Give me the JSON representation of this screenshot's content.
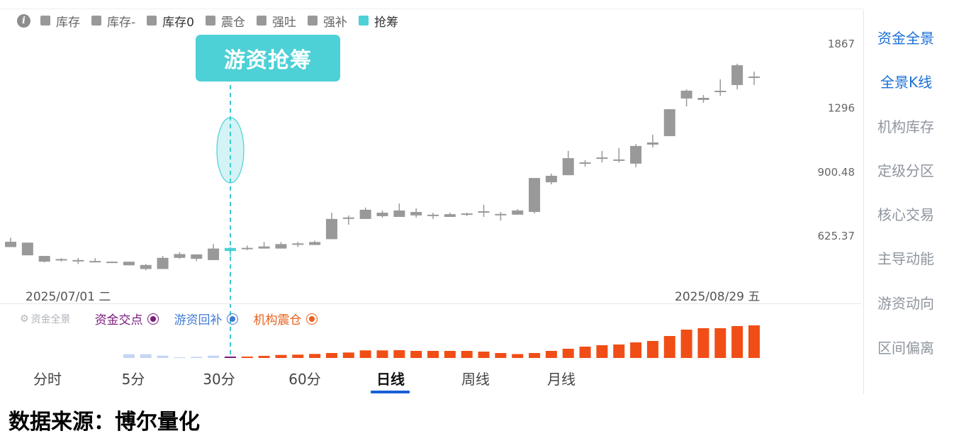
{
  "legend": {
    "info_icon": "info-icon",
    "items": [
      {
        "label": "库存",
        "color": "#999999"
      },
      {
        "label": "库存-",
        "color": "#999999"
      },
      {
        "label": "库存0",
        "color": "#999999"
      },
      {
        "label": "震仓",
        "color": "#999999"
      },
      {
        "label": "强吐",
        "color": "#999999"
      },
      {
        "label": "强补",
        "color": "#999999"
      },
      {
        "label": "抢筹",
        "color": "#4dd0d6"
      }
    ]
  },
  "annotation": {
    "label": "游资抢筹",
    "color": "#4dd0d6"
  },
  "x_axis": {
    "start_label": "2025/07/01 二",
    "end_label": "2025/08/29 五"
  },
  "sidebar": {
    "items": [
      {
        "label": "资金全景",
        "active": true
      },
      {
        "label": "全景K线",
        "active": true
      },
      {
        "label": "机构库存",
        "active": false
      },
      {
        "label": "定级分区",
        "active": false
      },
      {
        "label": "核心交易",
        "active": false
      },
      {
        "label": "主导动能",
        "active": false
      },
      {
        "label": "游资动向",
        "active": false
      },
      {
        "label": "区间偏离",
        "active": false
      }
    ]
  },
  "bottom_legend": {
    "title": "资金全景",
    "items": [
      {
        "label": "资金交点",
        "color": "#7b1a7e"
      },
      {
        "label": "游资回补",
        "color": "#3f7bd6"
      },
      {
        "label": "机构震仓",
        "color": "#e8601c"
      }
    ]
  },
  "tabs": [
    {
      "label": "分时",
      "active": false
    },
    {
      "label": "5分",
      "active": false
    },
    {
      "label": "30分",
      "active": false
    },
    {
      "label": "60分",
      "active": false
    },
    {
      "label": "日线",
      "active": true
    },
    {
      "label": "周线",
      "active": false
    },
    {
      "label": "月线",
      "active": false
    }
  ],
  "footer": "数据来源：博尔量化",
  "chart_data": [
    {
      "type": "candlestick",
      "y_scale": "log",
      "y_ticks": [
        "1867",
        "1296",
        "900.48",
        "625.37"
      ],
      "grid": false,
      "highlight_index": 13,
      "colors": {
        "default": "#999999",
        "highlight": "#4dd0d6"
      },
      "candles": [
        {
          "o": 588,
          "c": 606,
          "h": 620,
          "l": 588
        },
        {
          "o": 561,
          "c": 603,
          "h": 603,
          "l": 561
        },
        {
          "o": 541,
          "c": 559,
          "h": 559,
          "l": 539
        },
        {
          "o": 547,
          "c": 547,
          "h": 552,
          "l": 541
        },
        {
          "o": 544,
          "c": 544,
          "h": 553,
          "l": 534
        },
        {
          "o": 541,
          "c": 541,
          "h": 552,
          "l": 539
        },
        {
          "o": 539,
          "c": 539,
          "h": 541,
          "l": 537
        },
        {
          "o": 530,
          "c": 541,
          "h": 541,
          "l": 530
        },
        {
          "o": 519,
          "c": 531,
          "h": 534,
          "l": 515
        },
        {
          "o": 519,
          "c": 553,
          "h": 559,
          "l": 519
        },
        {
          "o": 553,
          "c": 565,
          "h": 571,
          "l": 550
        },
        {
          "o": 550,
          "c": 564,
          "h": 564,
          "l": 543
        },
        {
          "o": 546,
          "c": 583,
          "h": 598,
          "l": 546
        },
        {
          "o": 575,
          "c": 585,
          "h": 588,
          "l": 559
        },
        {
          "o": 583,
          "c": 583,
          "h": 593,
          "l": 578
        },
        {
          "o": 583,
          "c": 590,
          "h": 605,
          "l": 583
        },
        {
          "o": 583,
          "c": 598,
          "h": 605,
          "l": 583
        },
        {
          "o": 598,
          "c": 598,
          "h": 605,
          "l": 588
        },
        {
          "o": 595,
          "c": 605,
          "h": 610,
          "l": 595
        },
        {
          "o": 615,
          "c": 690,
          "h": 715,
          "l": 615
        },
        {
          "o": 693,
          "c": 693,
          "h": 704,
          "l": 668
        },
        {
          "o": 690,
          "c": 727,
          "h": 736,
          "l": 690
        },
        {
          "o": 701,
          "c": 715,
          "h": 724,
          "l": 695
        },
        {
          "o": 698,
          "c": 724,
          "h": 753,
          "l": 698
        },
        {
          "o": 704,
          "c": 718,
          "h": 733,
          "l": 695
        },
        {
          "o": 704,
          "c": 704,
          "h": 715,
          "l": 690
        },
        {
          "o": 698,
          "c": 709,
          "h": 715,
          "l": 698
        },
        {
          "o": 709,
          "c": 709,
          "h": 715,
          "l": 701
        },
        {
          "o": 718,
          "c": 718,
          "h": 748,
          "l": 698
        },
        {
          "o": 707,
          "c": 707,
          "h": 718,
          "l": 684
        },
        {
          "o": 707,
          "c": 724,
          "h": 730,
          "l": 707
        },
        {
          "o": 718,
          "c": 871,
          "h": 871,
          "l": 712
        },
        {
          "o": 850,
          "c": 882,
          "h": 893,
          "l": 840
        },
        {
          "o": 885,
          "c": 975,
          "h": 1016,
          "l": 885
        },
        {
          "o": 948,
          "c": 948,
          "h": 964,
          "l": 929
        },
        {
          "o": 975,
          "c": 975,
          "h": 1016,
          "l": 952
        },
        {
          "o": 964,
          "c": 964,
          "h": 1032,
          "l": 952
        },
        {
          "o": 945,
          "c": 1045,
          "h": 1057,
          "l": 926
        },
        {
          "o": 1053,
          "c": 1066,
          "h": 1114,
          "l": 1036
        },
        {
          "o": 1105,
          "c": 1288,
          "h": 1288,
          "l": 1105
        },
        {
          "o": 1369,
          "c": 1431,
          "h": 1442,
          "l": 1309
        },
        {
          "o": 1358,
          "c": 1374,
          "h": 1397,
          "l": 1336
        },
        {
          "o": 1425,
          "c": 1425,
          "h": 1526,
          "l": 1391
        },
        {
          "o": 1478,
          "c": 1654,
          "h": 1668,
          "l": 1442
        },
        {
          "o": 1545,
          "c": 1545,
          "h": 1595,
          "l": 1478
        }
      ]
    },
    {
      "type": "bar",
      "start_index": 7,
      "values": [
        5.3,
        5.3,
        3.3,
        1,
        1.7,
        3.3,
        2,
        2,
        3,
        4.3,
        4.7,
        5.7,
        7,
        7.7,
        10.7,
        10.7,
        11,
        10,
        10,
        10,
        10,
        9,
        7,
        5.5,
        7,
        10,
        13,
        16,
        18,
        19,
        22,
        24,
        31,
        40,
        42,
        42,
        45,
        46
      ],
      "series_for_each": [
        "游资回补",
        "游资回补",
        "游资回补",
        "游资回补",
        "游资回补",
        "游资回补",
        "资金交点",
        "机构震仓",
        "机构震仓",
        "机构震仓",
        "机构震仓",
        "机构震仓",
        "机构震仓",
        "机构震仓",
        "机构震仓",
        "机构震仓",
        "机构震仓",
        "机构震仓",
        "机构震仓",
        "机构震仓",
        "机构震仓",
        "机构震仓",
        "机构震仓",
        "机构震仓",
        "机构震仓",
        "机构震仓",
        "机构震仓",
        "机构震仓",
        "机构震仓",
        "机构震仓",
        "机构震仓",
        "机构震仓",
        "机构震仓",
        "机构震仓",
        "机构震仓",
        "机构震仓",
        "机构震仓",
        "机构震仓"
      ],
      "colors": {
        "游资回补": "#c5d6f3",
        "资金交点": "#7b1a7e",
        "机构震仓": "#f04e16"
      }
    }
  ]
}
